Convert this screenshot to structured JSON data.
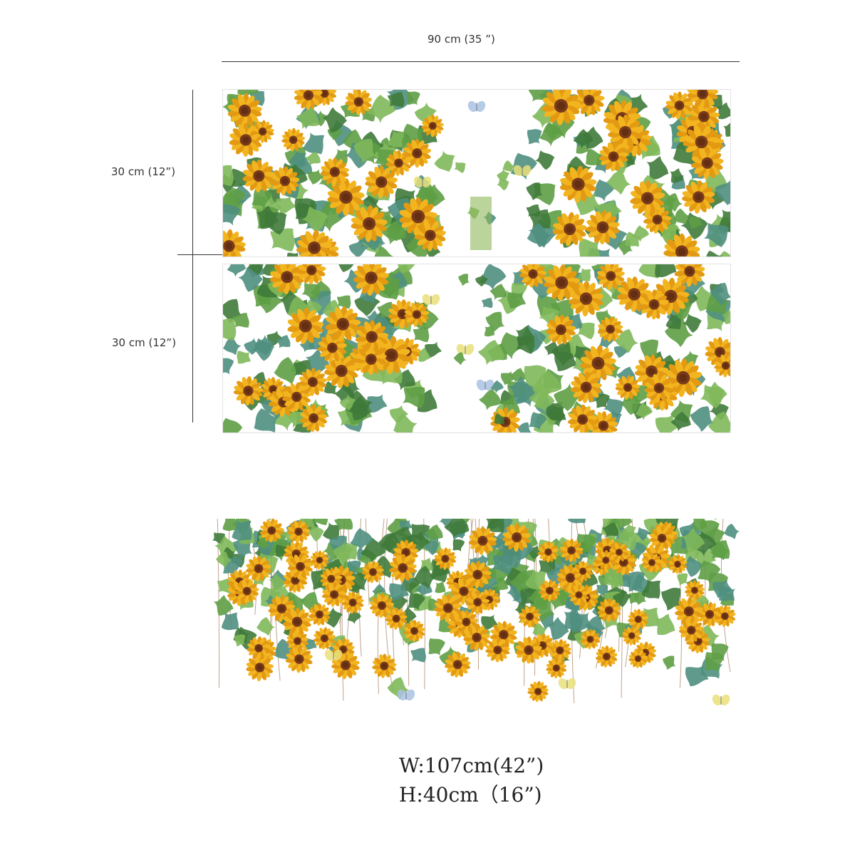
{
  "dimensions": {
    "width_label": "90 cm (35 ”)",
    "height_label_top": "30 cm (12”)",
    "height_label_bottom": "30 cm (12”)"
  },
  "final_size": {
    "width_text": "W:107cm(42”)",
    "height_text": "H:40cm（16”)"
  },
  "colors": {
    "petal": "#f2b51f",
    "petal_dark": "#e39a12",
    "center": "#7a3b1a",
    "leaf": "#5e9e45",
    "leaf_dark": "#3f7a3a",
    "leaf_teal": "#4f8f80",
    "vine": "#a67b5b",
    "butterfly_blue": "#a9c2e3",
    "butterfly_yellow": "#e9e07a"
  },
  "illustration": {
    "subject": "sunflower-vine-icon"
  }
}
